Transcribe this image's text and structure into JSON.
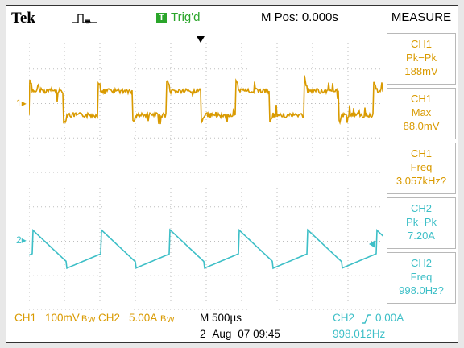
{
  "header": {
    "brand": "Tek",
    "acquire_icon": "pulse-acquire-icon",
    "trigger_badge": "T",
    "trigger_status": "Trig'd",
    "position": "M Pos: 0.000s"
  },
  "measure": {
    "title": "MEASURE",
    "items": [
      {
        "channel": "CH1",
        "name": "Pk−Pk",
        "value": "188mV",
        "color": "#d99a00"
      },
      {
        "channel": "CH1",
        "name": "Max",
        "value": "88.0mV",
        "color": "#d99a00"
      },
      {
        "channel": "CH1",
        "name": "Freq",
        "value": "3.057kHz?",
        "color": "#d99a00"
      },
      {
        "channel": "CH2",
        "name": "Pk−Pk",
        "value": "7.20A",
        "color": "#3dbfc7"
      },
      {
        "channel": "CH2",
        "name": "Freq",
        "value": "998.0Hz?",
        "color": "#3dbfc7"
      }
    ]
  },
  "markers": {
    "ch1": "1",
    "ch2": "2"
  },
  "footer": {
    "ch1_label": "CH1",
    "ch1_scale": "100mV",
    "ch1_bw": "B",
    "ch1_coupling": "W",
    "ch2_label": "CH2",
    "ch2_scale": "5.00A",
    "ch2_bw": "B",
    "ch2_coupling": "W",
    "timebase": "M 500µs",
    "trigger_source": "CH2",
    "trigger_level": "0.00A",
    "datetime": "2−Aug−07 09:45",
    "trigger_freq": "998.012Hz"
  },
  "colors": {
    "ch1": "#d99a00",
    "ch2": "#3dbfc7",
    "trigger": "#2aa52a"
  }
}
